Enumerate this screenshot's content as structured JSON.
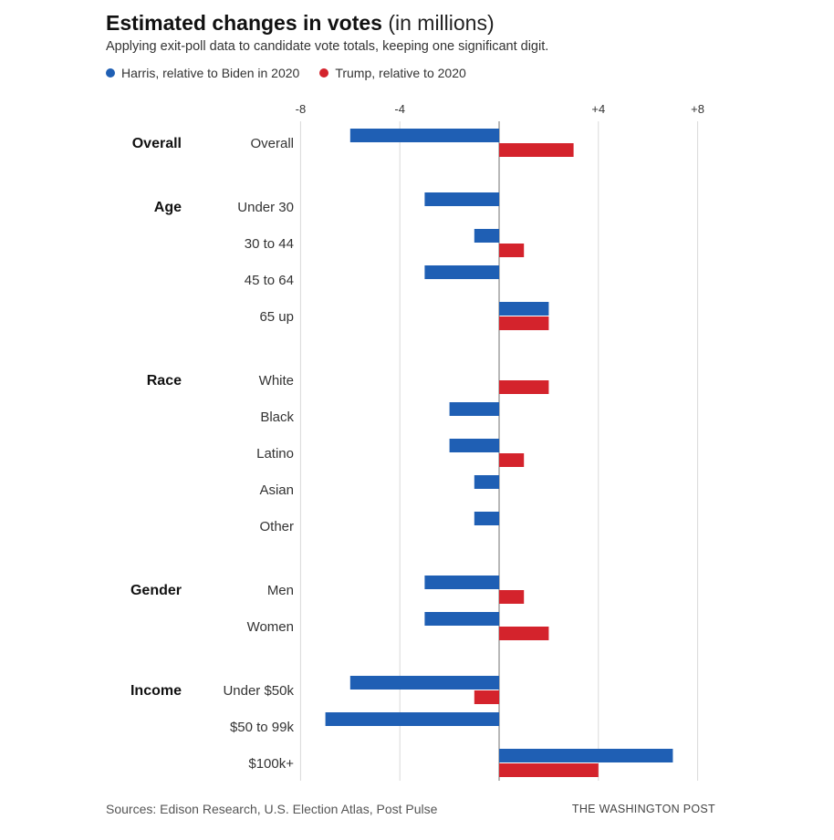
{
  "header": {
    "title": "Estimated changes in votes",
    "title_unit": "(in millions)",
    "subtitle": "Applying exit-poll data to candidate vote totals, keeping one significant digit."
  },
  "footer": {
    "source": "Sources: Edison Research, U.S. Election Atlas, Post Pulse",
    "credit": "THE WASHINGTON POST"
  },
  "chart_data": {
    "type": "bar",
    "orientation": "horizontal",
    "xlim": [
      -8,
      8
    ],
    "x_ticks": [
      -8,
      -4,
      0,
      4,
      8
    ],
    "x_tick_labels": [
      "-8",
      "-4",
      "",
      "+4",
      "+8"
    ],
    "grid": true,
    "legend_placement": "top-left",
    "series": [
      {
        "name": "Harris, relative to Biden in 2020",
        "color": "#1f5fb4"
      },
      {
        "name": "Trump, relative to 2020",
        "color": "#d4232c"
      }
    ],
    "groups": [
      {
        "label": "Overall",
        "rows": [
          {
            "label": "Overall",
            "harris": -6,
            "trump": 3
          }
        ]
      },
      {
        "label": "Age",
        "rows": [
          {
            "label": "Under 30",
            "harris": -3,
            "trump": 0
          },
          {
            "label": "30 to 44",
            "harris": -1,
            "trump": 1
          },
          {
            "label": "45 to 64",
            "harris": -3,
            "trump": 0
          },
          {
            "label": "65 up",
            "harris": 2,
            "trump": 2
          }
        ]
      },
      {
        "label": "Race",
        "rows": [
          {
            "label": "White",
            "harris": 0,
            "trump": 2
          },
          {
            "label": "Black",
            "harris": -2,
            "trump": 0
          },
          {
            "label": "Latino",
            "harris": -2,
            "trump": 1
          },
          {
            "label": "Asian",
            "harris": -1,
            "trump": 0
          },
          {
            "label": "Other",
            "harris": -1,
            "trump": 0
          }
        ]
      },
      {
        "label": "Gender",
        "rows": [
          {
            "label": "Men",
            "harris": -3,
            "trump": 1
          },
          {
            "label": "Women",
            "harris": -3,
            "trump": 2
          }
        ]
      },
      {
        "label": "Income",
        "rows": [
          {
            "label": "Under $50k",
            "harris": -6,
            "trump": -1
          },
          {
            "label": "$50 to 99k",
            "harris": -7,
            "trump": 0
          },
          {
            "label": "$100k+",
            "harris": 7,
            "trump": 4
          }
        ]
      }
    ]
  }
}
